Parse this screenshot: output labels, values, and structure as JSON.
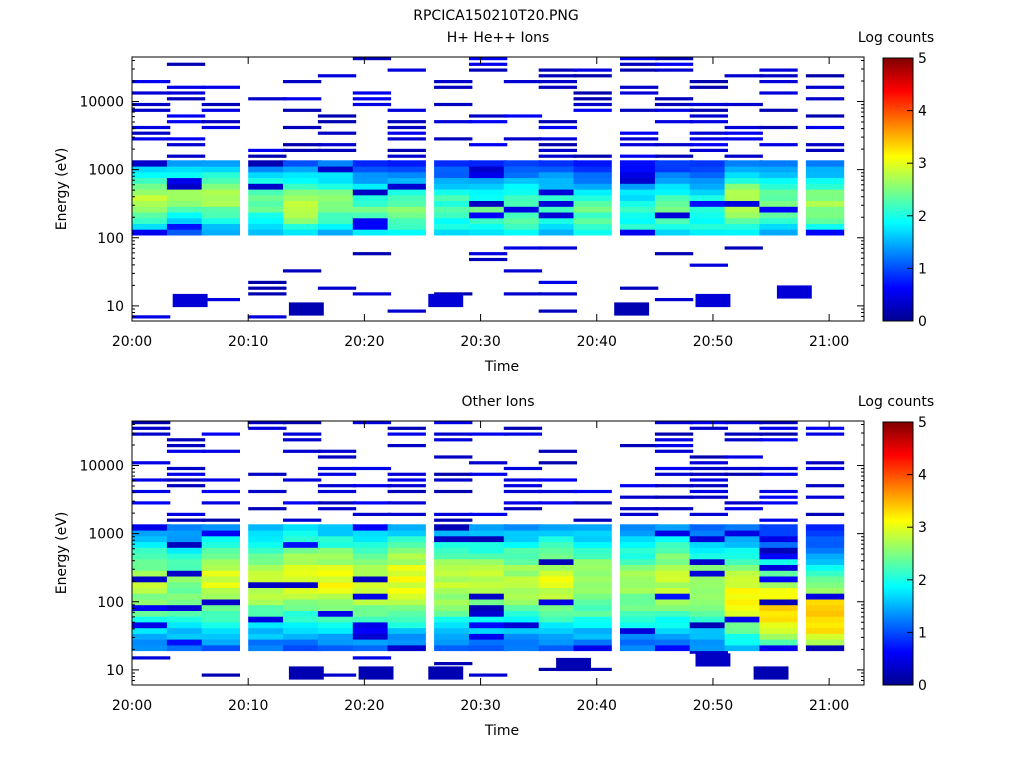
{
  "figure_title": "RPCICA150210T20.PNG",
  "colors": {
    "colormap": [
      "#00008f",
      "#0000ff",
      "#00ffff",
      "#ffff00",
      "#ff0000",
      "#800000"
    ],
    "axis": "#000000",
    "background": "#ffffff"
  },
  "chart_data": [
    {
      "type": "heatmap",
      "title": "H+ He++ Ions",
      "xlabel": "Time",
      "ylabel": "Energy (eV)",
      "x_ticks": [
        "20:00",
        "20:10",
        "20:20",
        "20:30",
        "20:40",
        "20:50",
        "21:00"
      ],
      "y_ticks": [
        "10",
        "100",
        "1000",
        "10000"
      ],
      "yscale": "log",
      "ylim": [
        6,
        45000
      ],
      "xlim": [
        "20:00",
        "21:03"
      ],
      "colorbar_label": "Log counts",
      "colorbar_ticks": [
        "0",
        "1",
        "2",
        "3",
        "4",
        "5"
      ],
      "clim": [
        0,
        5
      ],
      "time_bins": [
        "20:00",
        "20:03",
        "20:06",
        "20:10",
        "20:13",
        "20:16",
        "20:19",
        "20:22",
        "20:26",
        "20:29",
        "20:32",
        "20:35",
        "20:38",
        "20:42",
        "20:45",
        "20:48",
        "20:51",
        "20:54",
        "20:58"
      ],
      "core_band": {
        "energy_range": [
          100,
          1500
        ],
        "peak_energy": [
          380,
          430,
          400,
          360,
          300,
          320,
          260,
          250,
          270,
          240,
          260,
          270,
          240,
          230,
          250,
          230,
          330,
          320,
          310
        ],
        "peak_log_counts": [
          2.2,
          2.0,
          2.1,
          1.9,
          2.3,
          2.0,
          1.8,
          1.9,
          1.7,
          1.8,
          1.9,
          1.7,
          1.8,
          1.6,
          1.8,
          1.6,
          2.3,
          1.9,
          2.1
        ]
      },
      "low_energy_speckles": [
        {
          "time": "20:05",
          "energy": 12,
          "log_counts": 0.4
        },
        {
          "time": "20:15",
          "energy": 9,
          "log_counts": 0.2
        },
        {
          "time": "20:27",
          "energy": 12,
          "log_counts": 0.4
        },
        {
          "time": "20:43",
          "energy": 9,
          "log_counts": 0.2
        },
        {
          "time": "20:50",
          "energy": 12,
          "log_counts": 0.4
        },
        {
          "time": "20:57",
          "energy": 16,
          "log_counts": 0.4
        }
      ]
    },
    {
      "type": "heatmap",
      "title": "Other Ions",
      "xlabel": "Time",
      "ylabel": "Energy (eV)",
      "x_ticks": [
        "20:00",
        "20:10",
        "20:20",
        "20:30",
        "20:40",
        "20:50",
        "21:00"
      ],
      "y_ticks": [
        "10",
        "100",
        "1000",
        "10000"
      ],
      "yscale": "log",
      "ylim": [
        6,
        45000
      ],
      "xlim": [
        "20:00",
        "21:03"
      ],
      "colorbar_label": "Log counts",
      "colorbar_ticks": [
        "0",
        "1",
        "2",
        "3",
        "4",
        "5"
      ],
      "clim": [
        0,
        5
      ],
      "time_bins": [
        "20:00",
        "20:03",
        "20:06",
        "20:10",
        "20:13",
        "20:16",
        "20:19",
        "20:22",
        "20:26",
        "20:29",
        "20:32",
        "20:35",
        "20:38",
        "20:42",
        "20:45",
        "20:48",
        "20:51",
        "20:54",
        "20:58"
      ],
      "core_band": {
        "energy_range": [
          20,
          1400
        ],
        "peak_energy": [
          180,
          170,
          200,
          190,
          220,
          200,
          190,
          210,
          200,
          190,
          200,
          200,
          190,
          180,
          200,
          160,
          120,
          80,
          60
        ],
        "peak_log_counts": [
          2.2,
          2.0,
          2.4,
          2.3,
          2.4,
          2.5,
          2.4,
          2.5,
          2.3,
          2.3,
          2.2,
          2.4,
          2.2,
          2.1,
          2.3,
          2.1,
          2.6,
          2.7,
          2.8
        ]
      },
      "low_energy_speckles": [
        {
          "time": "20:15",
          "energy": 9,
          "log_counts": 0.2
        },
        {
          "time": "20:21",
          "energy": 9,
          "log_counts": 0.2
        },
        {
          "time": "20:27",
          "energy": 9,
          "log_counts": 0.2
        },
        {
          "time": "20:38",
          "energy": 12,
          "log_counts": 0.2
        },
        {
          "time": "20:50",
          "energy": 14,
          "log_counts": 0.3
        },
        {
          "time": "20:55",
          "energy": 9,
          "log_counts": 0.2
        }
      ]
    }
  ]
}
